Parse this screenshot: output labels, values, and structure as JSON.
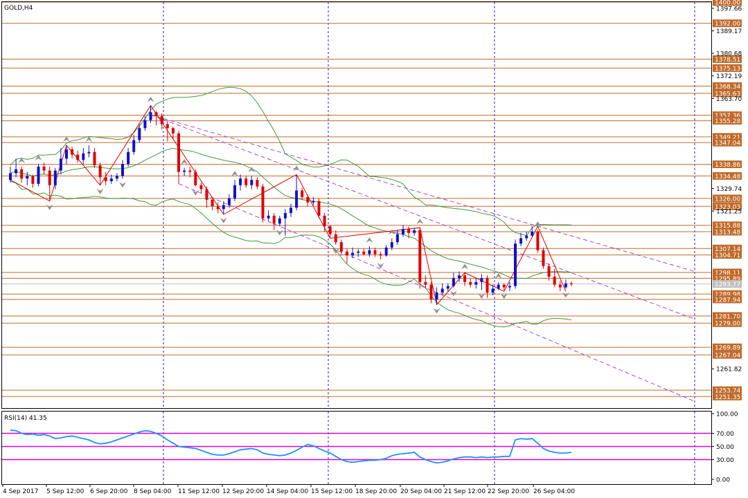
{
  "window": {
    "title": "GOLD,H4"
  },
  "colors": {
    "bull": "#1111cc",
    "bear": "#dd0000",
    "level": "#c06a2a",
    "channel": "#aa44cc",
    "band": "#3c9a3c",
    "zigzag": "#dd0000",
    "rsi": "#1e90ff",
    "rsi_level": "#dd00dd",
    "grid": "#1a1acc",
    "current": "#c0c0c0"
  },
  "chart_data": [
    {
      "type": "candlestick",
      "title": "GOLD,H4",
      "xlabel": "",
      "ylabel": "",
      "ylim": [
        1247,
        1400
      ],
      "x_ticks": [
        "4 Sep 2017",
        "5 Sep 12:00",
        "6 Sep 20:00",
        "8 Sep 04:00",
        "11 Sep 12:00",
        "12 Sep 20:00",
        "14 Sep 04:00",
        "15 Sep 12:00",
        "18 Sep 20:00",
        "20 Sep 04:00",
        "21 Sep 12:00",
        "22 Sep 20:00",
        "26 Sep 04:00"
      ],
      "y_ticks": [
        "1397.66",
        "1389.17",
        "1380.68",
        "1372.19",
        "1363.70",
        "1329.74",
        "1321.25",
        "1261.82"
      ],
      "levels": [
        "1400.00",
        "1392.00",
        "1378.51",
        "1375.13",
        "1368.34",
        "1365.63",
        "1357.36",
        "1355.28",
        "1349.21",
        "1347.04",
        "1338.86",
        "1334.48",
        "1326.00",
        "1323.03",
        "1315.88",
        "1313.48",
        "1307.14",
        "1304.71",
        "1298.11",
        "1295.89",
        "1289.98",
        "1287.94",
        "1281.70",
        "1279.00",
        "1269.89",
        "1267.04",
        "1253.74",
        "1251.35"
      ],
      "current_price": "1293.77",
      "series": [
        {
          "name": "GOLD",
          "values": [
            [
              1333.0,
              1335.5,
              1338.0,
              1332.0
            ],
            [
              1335.5,
              1337.0,
              1341.0,
              1334.0
            ],
            [
              1337.0,
              1333.5,
              1338.0,
              1332.0
            ],
            [
              1333.5,
              1334.5,
              1336.0,
              1331.0
            ],
            [
              1334.5,
              1331.5,
              1335.0,
              1330.0
            ],
            [
              1331.5,
              1338.0,
              1339.0,
              1330.5
            ],
            [
              1338.0,
              1336.5,
              1339.5,
              1335.0
            ],
            [
              1336.5,
              1331.0,
              1338.0,
              1325.0
            ],
            [
              1331.0,
              1336.5,
              1337.5,
              1329.5
            ],
            [
              1336.5,
              1341.0,
              1345.0,
              1335.0
            ],
            [
              1341.0,
              1344.5,
              1346.0,
              1339.0
            ],
            [
              1344.5,
              1342.5,
              1345.5,
              1341.0
            ],
            [
              1342.5,
              1340.5,
              1344.0,
              1339.5
            ],
            [
              1340.5,
              1343.0,
              1345.0,
              1339.0
            ],
            [
              1343.0,
              1343.5,
              1346.0,
              1341.5
            ],
            [
              1343.5,
              1338.5,
              1345.0,
              1337.5
            ],
            [
              1338.5,
              1334.0,
              1339.5,
              1331.0
            ],
            [
              1334.0,
              1332.5,
              1336.0,
              1331.0
            ],
            [
              1332.5,
              1333.5,
              1335.0,
              1331.5
            ],
            [
              1333.5,
              1334.5,
              1335.5,
              1332.5
            ],
            [
              1334.5,
              1339.0,
              1340.5,
              1333.5
            ],
            [
              1339.0,
              1343.5,
              1345.0,
              1338.0
            ],
            [
              1343.5,
              1348.0,
              1350.0,
              1342.5
            ],
            [
              1348.0,
              1352.5,
              1354.0,
              1347.0
            ],
            [
              1352.5,
              1355.5,
              1357.0,
              1351.5
            ],
            [
              1355.5,
              1358.5,
              1361.0,
              1354.5
            ],
            [
              1358.5,
              1357.0,
              1359.0,
              1353.5
            ],
            [
              1357.0,
              1354.0,
              1358.0,
              1352.0
            ],
            [
              1354.0,
              1352.5,
              1355.0,
              1347.5
            ],
            [
              1352.5,
              1350.5,
              1353.0,
              1348.5
            ],
            [
              1350.5,
              1336.0,
              1351.5,
              1331.5
            ],
            [
              1336.0,
              1336.5,
              1337.5,
              1334.5
            ],
            [
              1336.5,
              1336.0,
              1338.0,
              1334.0
            ],
            [
              1336.0,
              1331.0,
              1337.0,
              1330.5
            ],
            [
              1331.0,
              1329.5,
              1332.0,
              1328.0
            ],
            [
              1329.5,
              1325.5,
              1330.5,
              1322.5
            ],
            [
              1325.5,
              1323.0,
              1326.5,
              1321.5
            ],
            [
              1323.0,
              1322.0,
              1324.5,
              1320.5
            ],
            [
              1322.0,
              1323.5,
              1325.0,
              1320.0
            ],
            [
              1323.5,
              1326.0,
              1327.5,
              1322.5
            ],
            [
              1326.0,
              1331.0,
              1333.0,
              1325.0
            ],
            [
              1331.0,
              1333.5,
              1335.0,
              1329.0
            ],
            [
              1333.5,
              1331.0,
              1334.5,
              1330.0
            ],
            [
              1331.0,
              1333.0,
              1334.5,
              1329.5
            ],
            [
              1333.0,
              1330.5,
              1334.0,
              1329.5
            ],
            [
              1330.5,
              1318.5,
              1331.5,
              1317.0
            ],
            [
              1318.5,
              1319.5,
              1321.5,
              1317.5
            ],
            [
              1319.5,
              1316.5,
              1320.5,
              1314.0
            ],
            [
              1316.5,
              1318.5,
              1319.5,
              1315.5
            ],
            [
              1318.5,
              1320.5,
              1322.0,
              1312.0
            ],
            [
              1320.5,
              1322.5,
              1324.0,
              1319.0
            ],
            [
              1322.5,
              1329.0,
              1335.0,
              1321.5
            ],
            [
              1329.0,
              1326.5,
              1330.0,
              1325.5
            ],
            [
              1326.5,
              1324.5,
              1327.5,
              1323.0
            ],
            [
              1324.5,
              1325.0,
              1326.5,
              1323.5
            ],
            [
              1325.0,
              1319.5,
              1326.0,
              1318.5
            ],
            [
              1319.5,
              1315.5,
              1320.5,
              1313.5
            ],
            [
              1315.5,
              1312.5,
              1316.0,
              1311.0
            ],
            [
              1312.5,
              1309.5,
              1314.0,
              1308.5
            ],
            [
              1309.5,
              1306.0,
              1310.5,
              1304.5
            ],
            [
              1306.0,
              1304.5,
              1307.0,
              1301.5
            ],
            [
              1304.5,
              1305.5,
              1307.5,
              1303.5
            ],
            [
              1305.5,
              1306.0,
              1307.0,
              1304.0
            ],
            [
              1306.0,
              1305.0,
              1307.0,
              1304.5
            ],
            [
              1305.0,
              1306.5,
              1308.0,
              1304.0
            ],
            [
              1306.5,
              1305.0,
              1307.5,
              1304.0
            ],
            [
              1305.0,
              1304.5,
              1306.0,
              1303.0
            ],
            [
              1304.5,
              1307.5,
              1308.5,
              1304.0
            ],
            [
              1307.5,
              1309.5,
              1311.0,
              1306.5
            ],
            [
              1309.5,
              1312.5,
              1314.0,
              1308.5
            ],
            [
              1312.5,
              1314.5,
              1316.0,
              1311.5
            ],
            [
              1314.5,
              1313.0,
              1315.5,
              1311.0
            ],
            [
              1313.0,
              1314.0,
              1315.0,
              1312.0
            ],
            [
              1314.0,
              1294.5,
              1315.0,
              1292.0
            ],
            [
              1294.5,
              1293.5,
              1297.0,
              1292.0
            ],
            [
              1293.5,
              1288.0,
              1294.5,
              1286.5
            ],
            [
              1288.0,
              1290.5,
              1292.5,
              1286.0
            ],
            [
              1290.5,
              1292.0,
              1294.0,
              1289.5
            ],
            [
              1292.0,
              1293.0,
              1294.0,
              1291.0
            ],
            [
              1293.0,
              1296.0,
              1298.0,
              1292.5
            ],
            [
              1296.0,
              1297.0,
              1298.5,
              1294.5
            ],
            [
              1297.0,
              1294.5,
              1298.0,
              1293.0
            ],
            [
              1294.5,
              1293.5,
              1296.0,
              1292.5
            ],
            [
              1293.5,
              1294.5,
              1296.0,
              1292.0
            ],
            [
              1294.5,
              1296.0,
              1297.5,
              1291.5
            ],
            [
              1296.0,
              1290.5,
              1297.0,
              1288.5
            ],
            [
              1290.5,
              1292.0,
              1293.5,
              1289.5
            ],
            [
              1292.0,
              1293.5,
              1294.5,
              1291.5
            ],
            [
              1293.5,
              1292.5,
              1294.0,
              1291.5
            ],
            [
              1292.5,
              1293.0,
              1294.5,
              1291.0
            ],
            [
              1293.0,
              1309.0,
              1310.5,
              1292.0
            ],
            [
              1309.0,
              1311.0,
              1313.0,
              1308.0
            ],
            [
              1311.0,
              1312.0,
              1313.5,
              1310.0
            ],
            [
              1312.0,
              1313.5,
              1315.5,
              1311.5
            ],
            [
              1313.5,
              1306.5,
              1314.0,
              1305.5
            ],
            [
              1306.5,
              1300.5,
              1307.5,
              1299.5
            ],
            [
              1300.5,
              1296.5,
              1301.5,
              1295.0
            ],
            [
              1296.5,
              1293.5,
              1299.5,
              1292.5
            ],
            [
              1293.5,
              1292.5,
              1295.0,
              1291.0
            ],
            [
              1292.5,
              1294.0,
              1295.5,
              1292.0
            ],
            [
              1294.0,
              1293.8,
              1294.8,
              1293.0
            ]
          ]
        }
      ]
    },
    {
      "type": "line",
      "title": "RSI(14) 41.35",
      "xlabel": "",
      "ylabel": "",
      "ylim": [
        0,
        100
      ],
      "y_ticks": [
        "100.00",
        "70.00",
        "50.00",
        "30.00",
        "0.00"
      ],
      "levels": [
        70,
        50,
        30
      ],
      "series": [
        {
          "name": "RSI(14)",
          "values": [
            75,
            74,
            70,
            68,
            69,
            67,
            68,
            66,
            62,
            63,
            65,
            66,
            64,
            62,
            60,
            56,
            54,
            55,
            57,
            60,
            63,
            66,
            69,
            72,
            74,
            73,
            70,
            66,
            60,
            55,
            50,
            49,
            48,
            47,
            44,
            41,
            38,
            37,
            37,
            39,
            42,
            45,
            46,
            47,
            45,
            40,
            38,
            37,
            36,
            37,
            40,
            44,
            49,
            53,
            51,
            47,
            43,
            40,
            35,
            30,
            27,
            26,
            27,
            28,
            29,
            29,
            30,
            32,
            36,
            38,
            39,
            40,
            41,
            34,
            30,
            27,
            25,
            26,
            28,
            31,
            33,
            34,
            34,
            33,
            34,
            33,
            34,
            34,
            35,
            35,
            60,
            62,
            61,
            62,
            55,
            47,
            43,
            41,
            40,
            40,
            41
          ]
        }
      ]
    }
  ]
}
